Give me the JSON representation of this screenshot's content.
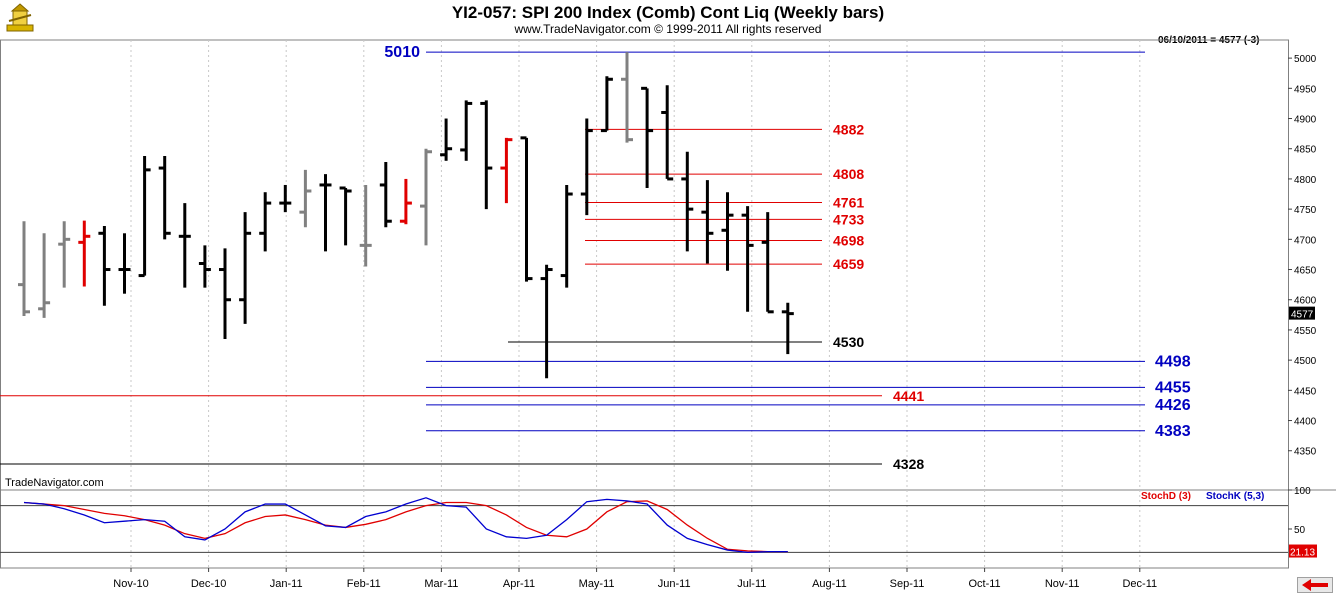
{
  "header": {
    "title": "YI2-057:  SPI 200 Index (Comb) Cont Liq  (Weekly bars)",
    "copyright": "www.TradeNavigator.com © 1999-2011 All rights reserved",
    "last_info": "06/10/2011 = 4577 (-3)",
    "watermark": "TradeNavigator.com",
    "logo": "trade-navigator-logo-icon"
  },
  "colors": {
    "up_bar": "#000000",
    "gray_bar": "#808080",
    "red_bar": "#e00000",
    "blue_line": "#0000c0",
    "red_line": "#e00000",
    "stoch_k": "#0000d0",
    "stoch_d": "#e00000",
    "grid": "#c8c8c8"
  },
  "chart_data": [
    {
      "type": "ohlc",
      "title": "YI2-057:  SPI 200 Index (Comb) Cont Liq  (Weekly bars)",
      "ylim": [
        4285,
        5030
      ],
      "y_ticks": [
        4350,
        4400,
        4450,
        4500,
        4550,
        4600,
        4650,
        4700,
        4750,
        4800,
        4850,
        4900,
        4950,
        5000
      ],
      "x_tick_labels": [
        "Nov-10",
        "Dec-10",
        "Jan-11",
        "Feb-11",
        "Mar-11",
        "Apr-11",
        "May-11",
        "Jun-11",
        "Jul-11",
        "Aug-11",
        "Sep-11",
        "Oct-11",
        "Nov-11",
        "Dec-11"
      ],
      "grid": "vertical dotted",
      "last_price_label": "4577",
      "bars": [
        {
          "o": 4625,
          "h": 4730,
          "l": 4573,
          "c": 4580,
          "color": "gray"
        },
        {
          "o": 4585,
          "h": 4710,
          "l": 4570,
          "c": 4595,
          "color": "gray"
        },
        {
          "o": 4692,
          "h": 4730,
          "l": 4620,
          "c": 4700,
          "color": "gray"
        },
        {
          "o": 4695,
          "h": 4731,
          "l": 4622,
          "c": 4705,
          "color": "red"
        },
        {
          "o": 4710,
          "h": 4722,
          "l": 4590,
          "c": 4650,
          "color": "black"
        },
        {
          "o": 4650,
          "h": 4710,
          "l": 4610,
          "c": 4650,
          "color": "black"
        },
        {
          "o": 4640,
          "h": 4838,
          "l": 4640,
          "c": 4815,
          "color": "black"
        },
        {
          "o": 4818,
          "h": 4838,
          "l": 4700,
          "c": 4710,
          "color": "black"
        },
        {
          "o": 4705,
          "h": 4760,
          "l": 4620,
          "c": 4705,
          "color": "black"
        },
        {
          "o": 4660,
          "h": 4690,
          "l": 4620,
          "c": 4650,
          "color": "black"
        },
        {
          "o": 4650,
          "h": 4685,
          "l": 4535,
          "c": 4600,
          "color": "black"
        },
        {
          "o": 4600,
          "h": 4745,
          "l": 4560,
          "c": 4710,
          "color": "black"
        },
        {
          "o": 4710,
          "h": 4778,
          "l": 4680,
          "c": 4760,
          "color": "black"
        },
        {
          "o": 4760,
          "h": 4790,
          "l": 4745,
          "c": 4760,
          "color": "black"
        },
        {
          "o": 4745,
          "h": 4815,
          "l": 4720,
          "c": 4780,
          "color": "gray"
        },
        {
          "o": 4790,
          "h": 4808,
          "l": 4680,
          "c": 4790,
          "color": "black"
        },
        {
          "o": 4785,
          "h": 4785,
          "l": 4690,
          "c": 4780,
          "color": "black"
        },
        {
          "o": 4690,
          "h": 4790,
          "l": 4655,
          "c": 4690,
          "color": "gray"
        },
        {
          "o": 4790,
          "h": 4828,
          "l": 4720,
          "c": 4730,
          "color": "black"
        },
        {
          "o": 4730,
          "h": 4800,
          "l": 4725,
          "c": 4760,
          "color": "red"
        },
        {
          "o": 4755,
          "h": 4850,
          "l": 4690,
          "c": 4845,
          "color": "gray"
        },
        {
          "o": 4840,
          "h": 4900,
          "l": 4830,
          "c": 4850,
          "color": "black"
        },
        {
          "o": 4848,
          "h": 4930,
          "l": 4830,
          "c": 4925,
          "color": "black"
        },
        {
          "o": 4925,
          "h": 4930,
          "l": 4750,
          "c": 4818,
          "color": "black"
        },
        {
          "o": 4818,
          "h": 4868,
          "l": 4760,
          "c": 4865,
          "color": "red"
        },
        {
          "o": 4868,
          "h": 4868,
          "l": 4630,
          "c": 4635,
          "color": "black"
        },
        {
          "o": 4635,
          "h": 4658,
          "l": 4470,
          "c": 4650,
          "color": "black"
        },
        {
          "o": 4640,
          "h": 4790,
          "l": 4620,
          "c": 4775,
          "color": "black"
        },
        {
          "o": 4775,
          "h": 4900,
          "l": 4740,
          "c": 4880,
          "color": "black"
        },
        {
          "o": 4880,
          "h": 4970,
          "l": 4880,
          "c": 4965,
          "color": "black"
        },
        {
          "o": 4965,
          "h": 5010,
          "l": 4860,
          "c": 4865,
          "color": "gray"
        },
        {
          "o": 4950,
          "h": 4950,
          "l": 4785,
          "c": 4880,
          "color": "black"
        },
        {
          "o": 4910,
          "h": 4955,
          "l": 4800,
          "c": 4800,
          "color": "black"
        },
        {
          "o": 4800,
          "h": 4845,
          "l": 4680,
          "c": 4750,
          "color": "black"
        },
        {
          "o": 4745,
          "h": 4798,
          "l": 4660,
          "c": 4710,
          "color": "black"
        },
        {
          "o": 4715,
          "h": 4778,
          "l": 4648,
          "c": 4740,
          "color": "black"
        },
        {
          "o": 4740,
          "h": 4755,
          "l": 4580,
          "c": 4690,
          "color": "black"
        },
        {
          "o": 4695,
          "h": 4745,
          "l": 4580,
          "c": 4580,
          "color": "black"
        },
        {
          "o": 4580,
          "h": 4595,
          "l": 4510,
          "c": 4577,
          "color": "black"
        }
      ],
      "levels": [
        {
          "value": 5010,
          "label": "5010",
          "color": "blue",
          "label_side": "left"
        },
        {
          "value": 4882,
          "label": "4882",
          "color": "red"
        },
        {
          "value": 4808,
          "label": "4808",
          "color": "red"
        },
        {
          "value": 4761,
          "label": "4761",
          "color": "red"
        },
        {
          "value": 4733,
          "label": "4733",
          "color": "red"
        },
        {
          "value": 4698,
          "label": "4698",
          "color": "red"
        },
        {
          "value": 4659,
          "label": "4659",
          "color": "red"
        },
        {
          "value": 4530,
          "label": "4530",
          "color": "black"
        },
        {
          "value": 4498,
          "label": "4498",
          "color": "blue"
        },
        {
          "value": 4455,
          "label": "4455",
          "color": "blue"
        },
        {
          "value": 4441,
          "label": "4441",
          "color": "red"
        },
        {
          "value": 4426,
          "label": "4426",
          "color": "blue"
        },
        {
          "value": 4383,
          "label": "4383",
          "color": "blue"
        },
        {
          "value": 4328,
          "label": "4328",
          "color": "black"
        }
      ]
    },
    {
      "type": "line",
      "ylim": [
        0,
        100
      ],
      "y_ticks": [
        50,
        100
      ],
      "reference_lines": [
        80,
        20
      ],
      "last_value_label": "21.13",
      "series": [
        {
          "name": "StochD (3)",
          "color": "red",
          "values": [
            84,
            82,
            80,
            75,
            70,
            67,
            62,
            55,
            44,
            38,
            44,
            58,
            66,
            68,
            62,
            55,
            52,
            56,
            62,
            72,
            80,
            84,
            84,
            80,
            68,
            52,
            42,
            40,
            50,
            72,
            85,
            86,
            75,
            55,
            38,
            24,
            22,
            21,
            21
          ]
        },
        {
          "name": "StochK (5,3)",
          "color": "blue",
          "values": [
            84,
            82,
            76,
            68,
            58,
            60,
            62,
            60,
            40,
            36,
            50,
            72,
            82,
            82,
            68,
            54,
            52,
            66,
            72,
            82,
            90,
            80,
            78,
            50,
            40,
            38,
            42,
            62,
            85,
            88,
            86,
            82,
            55,
            38,
            30,
            23,
            20,
            21,
            21
          ]
        }
      ]
    }
  ]
}
